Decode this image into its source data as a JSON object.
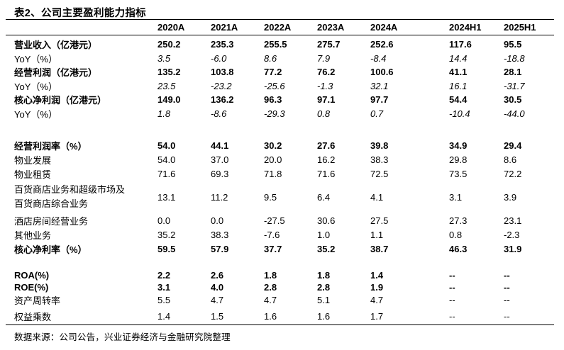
{
  "title": "表2、公司主要盈利能力指标",
  "table": {
    "columns": [
      "2020A",
      "2021A",
      "2022A",
      "2023A",
      "2024A",
      "2024H1",
      "2025H1"
    ],
    "sections": [
      {
        "rows": [
          {
            "label": "营业收入（亿港元）",
            "style": "bold",
            "values": [
              "250.2",
              "235.3",
              "255.5",
              "275.7",
              "252.6",
              "117.6",
              "95.5"
            ]
          },
          {
            "label": "YoY（%）",
            "style": "italic",
            "values": [
              "3.5",
              "-6.0",
              "8.6",
              "7.9",
              "-8.4",
              "14.4",
              "-18.8"
            ]
          },
          {
            "label": "经营利润（亿港元）",
            "style": "bold",
            "values": [
              "135.2",
              "103.8",
              "77.2",
              "76.2",
              "100.6",
              "41.1",
              "28.1"
            ]
          },
          {
            "label": "YoY（%）",
            "style": "italic",
            "values": [
              "23.5",
              "-23.2",
              "-25.6",
              "-1.3",
              "32.1",
              "16.1",
              "-31.7"
            ]
          },
          {
            "label": "核心净利润（亿港元）",
            "style": "bold",
            "values": [
              "149.0",
              "136.2",
              "96.3",
              "97.1",
              "97.7",
              "54.4",
              "30.5"
            ]
          },
          {
            "label": "YoY（%）",
            "style": "italic",
            "values": [
              "1.8",
              "-8.6",
              "-29.3",
              "0.8",
              "0.7",
              "-10.4",
              "-44.0"
            ]
          }
        ]
      },
      {
        "rows": [
          {
            "label": "经营利润率（%）",
            "style": "bold",
            "values": [
              "54.0",
              "44.1",
              "30.2",
              "27.6",
              "39.8",
              "34.9",
              "29.4"
            ]
          },
          {
            "label": "物业发展",
            "style": "normal",
            "values": [
              "54.0",
              "37.0",
              "20.0",
              "16.2",
              "38.3",
              "29.8",
              "8.6"
            ]
          },
          {
            "label": "物业租赁",
            "style": "normal",
            "values": [
              "71.6",
              "69.3",
              "71.8",
              "71.6",
              "72.5",
              "73.5",
              "72.2"
            ]
          },
          {
            "label": "百货商店业务和超级市场及\n百货商店综合业务",
            "style": "normal",
            "twoline": true,
            "values": [
              "13.1",
              "11.2",
              "9.5",
              "6.4",
              "4.1",
              "3.1",
              "3.9"
            ]
          },
          {
            "label": "酒店房间经营业务",
            "style": "normal",
            "values": [
              "0.0",
              "0.0",
              "-27.5",
              "30.6",
              "27.5",
              "27.3",
              "23.1"
            ]
          },
          {
            "label": "其他业务",
            "style": "normal",
            "values": [
              "35.2",
              "38.3",
              "-7.6",
              "1.0",
              "1.1",
              "0.8",
              "-2.3"
            ]
          },
          {
            "label": "核心净利率（%）",
            "style": "bold",
            "values": [
              "59.5",
              "57.9",
              "37.7",
              "35.2",
              "38.7",
              "46.3",
              "31.9"
            ]
          }
        ]
      },
      {
        "rows": [
          {
            "label": "ROA(%)",
            "style": "bold",
            "values": [
              "2.2",
              "2.6",
              "1.8",
              "1.8",
              "1.4",
              "--",
              "--"
            ]
          },
          {
            "label": "ROE(%)",
            "style": "bold",
            "values": [
              "3.1",
              "4.0",
              "2.8",
              "2.8",
              "1.9",
              "--",
              "--"
            ]
          },
          {
            "label": "资产周转率",
            "style": "normal",
            "values": [
              "5.5",
              "4.7",
              "4.7",
              "5.1",
              "4.7",
              "--",
              "--"
            ]
          },
          {
            "label": "权益乘数",
            "style": "normal",
            "values": [
              "1.4",
              "1.5",
              "1.6",
              "1.6",
              "1.7",
              "--",
              "--"
            ]
          }
        ]
      }
    ]
  },
  "footer": {
    "source_text": "数据来源：公司公告，兴业证券经济与金融研究院整理"
  }
}
